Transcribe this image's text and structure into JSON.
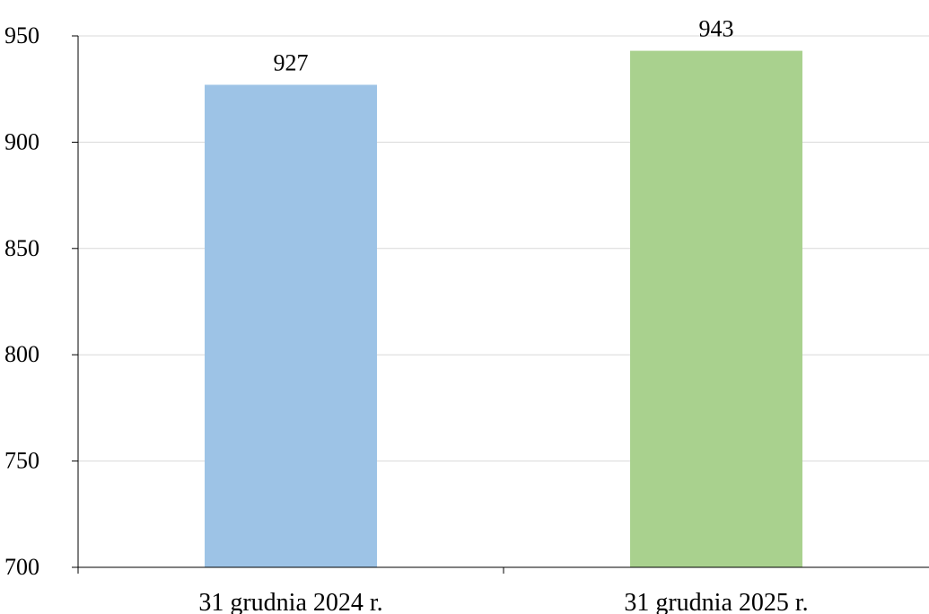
{
  "chart_data": {
    "type": "bar",
    "categories": [
      "31 grudnia 2024 r.",
      "31 grudnia 2025 r."
    ],
    "values": [
      927,
      943
    ],
    "colors": [
      "#9dc3e6",
      "#a9d18e"
    ],
    "ylim": [
      700,
      950
    ],
    "yticks": [
      700,
      750,
      800,
      850,
      900,
      950
    ],
    "grid": true,
    "title": "",
    "xlabel": "",
    "ylabel": ""
  }
}
